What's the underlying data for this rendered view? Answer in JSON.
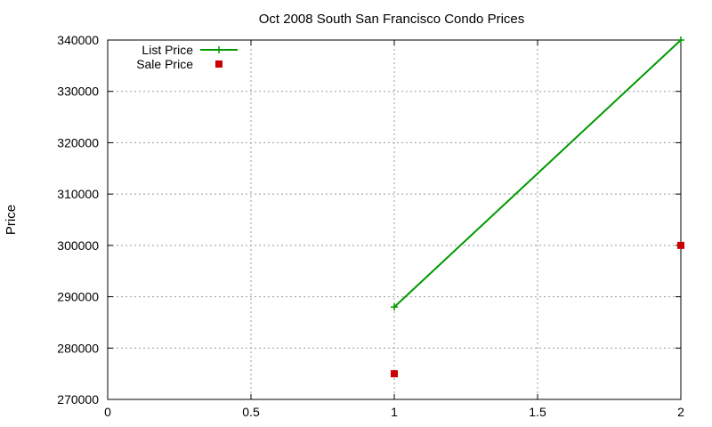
{
  "chart_data": {
    "type": "line",
    "title": "Oct 2008 South San Francisco Condo Prices",
    "xlabel": "",
    "ylabel": "Price",
    "xlim": [
      0,
      2
    ],
    "ylim": [
      270000,
      340000
    ],
    "x_ticks": [
      0,
      0.5,
      1,
      1.5,
      2
    ],
    "y_ticks": [
      270000,
      280000,
      290000,
      300000,
      310000,
      320000,
      330000,
      340000
    ],
    "grid": true,
    "legend_position": "top-left",
    "series": [
      {
        "name": "List Price",
        "style": "linespoints",
        "marker": "plus",
        "color": "#009900",
        "points": [
          {
            "x": 1,
            "y": 288000
          },
          {
            "x": 2,
            "y": 340000
          }
        ]
      },
      {
        "name": "Sale Price",
        "style": "points",
        "marker": "square",
        "color": "#cc0000",
        "points": [
          {
            "x": 1,
            "y": 275000
          },
          {
            "x": 2,
            "y": 300000
          }
        ]
      }
    ]
  }
}
